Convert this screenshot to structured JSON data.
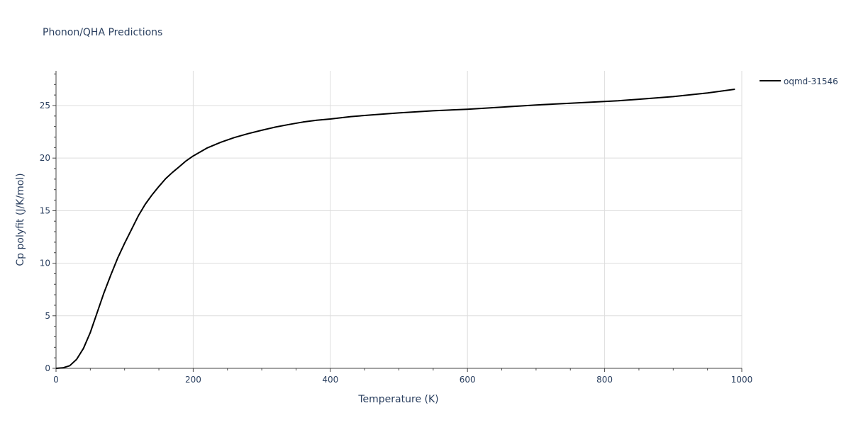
{
  "title": "Phonon/QHA Predictions",
  "chart_data": {
    "type": "line",
    "title": "Phonon/QHA Predictions",
    "xlabel": "Temperature (K)",
    "ylabel": "Cp polyfit (J/K/mol)",
    "xlim": [
      0,
      1000
    ],
    "ylim": [
      0,
      28.3
    ],
    "x_ticks": [
      0,
      200,
      400,
      600,
      800,
      1000
    ],
    "y_ticks": [
      0,
      5,
      10,
      15,
      20,
      25
    ],
    "grid": true,
    "legend_position": "top-right",
    "series": [
      {
        "name": "oqmd-31546",
        "color": "#000000",
        "x": [
          0,
          10,
          20,
          30,
          40,
          50,
          60,
          70,
          80,
          90,
          100,
          110,
          120,
          130,
          140,
          150,
          160,
          170,
          180,
          190,
          200,
          220,
          240,
          260,
          280,
          300,
          320,
          340,
          360,
          380,
          400,
          430,
          460,
          500,
          550,
          600,
          650,
          700,
          750,
          800,
          820,
          850,
          900,
          950,
          990
        ],
        "y": [
          0,
          0.05,
          0.25,
          0.85,
          1.9,
          3.4,
          5.3,
          7.2,
          8.9,
          10.5,
          11.9,
          13.2,
          14.5,
          15.6,
          16.5,
          17.3,
          18.05,
          18.65,
          19.2,
          19.75,
          20.2,
          20.95,
          21.5,
          21.95,
          22.32,
          22.65,
          22.95,
          23.2,
          23.43,
          23.6,
          23.72,
          23.95,
          24.1,
          24.3,
          24.5,
          24.65,
          24.85,
          25.05,
          25.22,
          25.38,
          25.45,
          25.6,
          25.85,
          26.2,
          26.55
        ]
      }
    ]
  }
}
